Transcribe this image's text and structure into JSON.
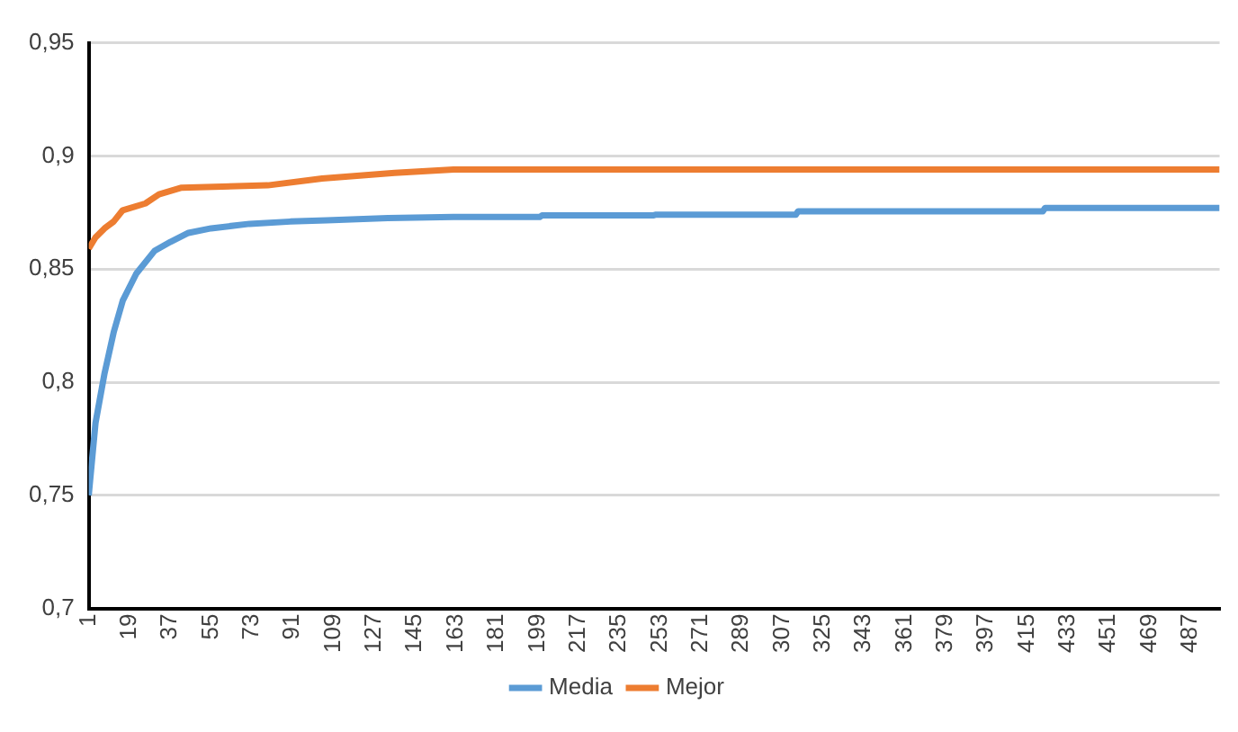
{
  "chart_data": {
    "type": "line",
    "xlim": [
      1,
      500
    ],
    "xticks": [
      1,
      19,
      37,
      55,
      73,
      91,
      109,
      127,
      145,
      163,
      181,
      199,
      217,
      235,
      253,
      271,
      289,
      307,
      325,
      343,
      361,
      379,
      397,
      415,
      433,
      451,
      469,
      487
    ],
    "ylim": [
      0.7,
      0.95
    ],
    "yticks": [
      {
        "value": 0.7,
        "label": "0,7"
      },
      {
        "value": 0.75,
        "label": "0,75"
      },
      {
        "value": 0.8,
        "label": "0,8"
      },
      {
        "value": 0.85,
        "label": "0,85"
      },
      {
        "value": 0.9,
        "label": "0,9"
      },
      {
        "value": 0.95,
        "label": "0,95"
      }
    ],
    "grid": "y",
    "legend": "bottom",
    "marker": "none",
    "line_style": "solid",
    "series": [
      {
        "name": "Media",
        "color": "#5b9bd5",
        "x": [
          1,
          4,
          8,
          12,
          16,
          22,
          30,
          37,
          45,
          55,
          72,
          90,
          106,
          133,
          162,
          200,
          201,
          250,
          251,
          313,
          314,
          422,
          423,
          500
        ],
        "values": [
          0.75,
          0.782,
          0.804,
          0.822,
          0.836,
          0.848,
          0.858,
          0.862,
          0.866,
          0.868,
          0.87,
          0.871,
          0.8715,
          0.8725,
          0.873,
          0.873,
          0.8737,
          0.8737,
          0.874,
          0.874,
          0.8755,
          0.8755,
          0.877,
          0.877
        ]
      },
      {
        "name": "Mejor",
        "color": "#ed7d31",
        "x": [
          1,
          4,
          8,
          12,
          16,
          26,
          32,
          42,
          80,
          104,
          136,
          162,
          500
        ],
        "values": [
          0.859,
          0.864,
          0.868,
          0.871,
          0.876,
          0.879,
          0.883,
          0.886,
          0.887,
          0.89,
          0.8925,
          0.894,
          0.894
        ]
      }
    ]
  }
}
